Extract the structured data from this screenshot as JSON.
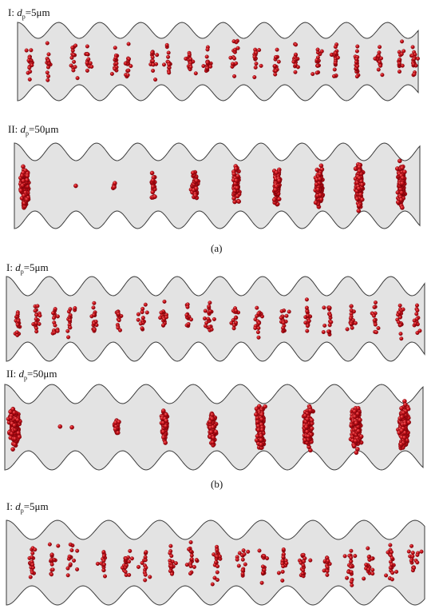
{
  "panels": [
    {
      "label": {
        "roman": "I:",
        "d": "d",
        "sub": "p",
        "value": "=5μm"
      }
    },
    {
      "label": {
        "roman": "II:",
        "d": "d",
        "sub": "p",
        "value": "=50μm"
      }
    },
    {
      "label": {
        "roman": "I:",
        "d": "d",
        "sub": "p",
        "value": "=5μm"
      }
    },
    {
      "label": {
        "roman": "II:",
        "d": "d",
        "sub": "p",
        "value": "=50μm"
      }
    },
    {
      "label": {
        "roman": "I:",
        "d": "d",
        "sub": "p",
        "value": "=5μm"
      }
    }
  ],
  "captions": {
    "a": "(a)",
    "b": "(b)"
  },
  "colors": {
    "channel_fill": "#e3e3e3",
    "channel_stroke": "#3a3a3a",
    "particle": "#c8141c",
    "particle_highlight": "#ff6a6a",
    "particle_dark": "#7a0008"
  }
}
